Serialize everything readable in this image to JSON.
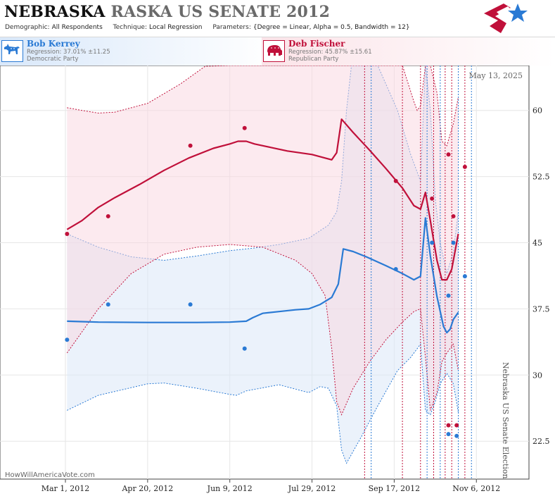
{
  "header": {
    "title_bold": "NEBRASKA",
    "title_rest": "RASKA US SENATE 2012",
    "params": [
      {
        "key": "Demographic:",
        "value": "All Respondents"
      },
      {
        "key": "Technique:",
        "value": "Local Regression"
      },
      {
        "key": "Parameters:",
        "value": "{Degree = Linear, Alpha = 0.5, Bandwidth = 12}"
      }
    ]
  },
  "candidates": {
    "dem": {
      "name": "Bob Kerrey",
      "regression": "Regression: 37.01% ±11.25",
      "party": "Democratic Party",
      "color": "#2a7ad4"
    },
    "rep": {
      "name": "Deb Fischer",
      "regression": "Regression: 45.87% ±15.61",
      "party": "Republican Party",
      "color": "#c0103a"
    }
  },
  "footer": {
    "date_label": "May 13, 2025",
    "side_label": "Nebraska US Senate Election",
    "watermark": "HowWillAmericaVote.com"
  },
  "chart_data": {
    "type": "scatter",
    "x_tick_labels": [
      "Mar 1, 2012",
      "Apr 20, 2012",
      "Jun 9, 2012",
      "Jul 29, 2012",
      "Sep 17, 2012",
      "Nov 6, 2012"
    ],
    "x_tick_days": [
      0,
      50,
      100,
      150,
      200,
      250
    ],
    "y_ticks": [
      22.5,
      30,
      37.5,
      45,
      52.5,
      60
    ],
    "y_tick_labels": [
      "22.5",
      "30",
      "37.5",
      "45",
      "52.5",
      "60"
    ],
    "ylim": [
      18.8,
      64.5
    ],
    "xlim_days": [
      -23,
      265
    ],
    "grid": true,
    "poll_lines": [
      {
        "day": 182,
        "party": "rep"
      },
      {
        "day": 186,
        "party": "dem"
      },
      {
        "day": 205,
        "party": "rep"
      },
      {
        "day": 216,
        "party": "rep"
      },
      {
        "day": 220,
        "party": "dem"
      },
      {
        "day": 224,
        "party": "rep"
      },
      {
        "day": 228,
        "party": "dem"
      },
      {
        "day": 231,
        "party": "rep"
      },
      {
        "day": 235,
        "party": "rep"
      },
      {
        "day": 239,
        "party": "dem"
      },
      {
        "day": 243,
        "party": "rep"
      },
      {
        "day": 247,
        "party": "dem"
      }
    ],
    "series": [
      {
        "name": "Bob Kerrey",
        "party": "dem",
        "color": "#2a7ad4",
        "points": [
          [
            1,
            34.0
          ],
          [
            26,
            38.0
          ],
          [
            76,
            38.0
          ],
          [
            109,
            33.0
          ],
          [
            201,
            42.0
          ],
          [
            223,
            45.0
          ],
          [
            233,
            39.0
          ],
          [
            233,
            23.3
          ],
          [
            236,
            45.0
          ],
          [
            238,
            23.1
          ],
          [
            243,
            41.2
          ]
        ],
        "trend": [
          [
            1,
            36.1
          ],
          [
            20,
            36.0
          ],
          [
            50,
            35.96
          ],
          [
            80,
            35.96
          ],
          [
            100,
            36.0
          ],
          [
            110,
            36.1
          ],
          [
            114,
            36.5
          ],
          [
            120,
            37.0
          ],
          [
            130,
            37.2
          ],
          [
            140,
            37.4
          ],
          [
            148,
            37.5
          ],
          [
            155,
            38.0
          ],
          [
            162,
            38.8
          ],
          [
            166,
            40.3
          ],
          [
            169,
            44.3
          ],
          [
            175,
            44.0
          ],
          [
            183,
            43.4
          ],
          [
            195,
            42.4
          ],
          [
            205,
            41.5
          ],
          [
            212,
            40.8
          ],
          [
            216,
            41.2
          ],
          [
            219,
            47.8
          ],
          [
            222,
            43.5
          ],
          [
            226,
            38.9
          ],
          [
            230,
            35.5
          ],
          [
            232,
            34.8
          ],
          [
            234,
            35.2
          ],
          [
            236,
            36.3
          ],
          [
            239,
            37.1
          ]
        ],
        "upper": [
          [
            1,
            46.0
          ],
          [
            20,
            44.5
          ],
          [
            40,
            43.4
          ],
          [
            60,
            43.0
          ],
          [
            80,
            43.5
          ],
          [
            100,
            44.1
          ],
          [
            115,
            44.4
          ],
          [
            130,
            44.8
          ],
          [
            148,
            45.5
          ],
          [
            160,
            47.0
          ],
          [
            165,
            48.5
          ],
          [
            168,
            52.0
          ],
          [
            171,
            60.0
          ],
          [
            174,
            68.0
          ],
          [
            180,
            70.0
          ],
          [
            190,
            66.0
          ],
          [
            202,
            60.0
          ],
          [
            210,
            55.0
          ],
          [
            216,
            52.0
          ],
          [
            219,
            70.0
          ],
          [
            222,
            60.0
          ],
          [
            225,
            50.0
          ],
          [
            228,
            45.0
          ],
          [
            232,
            41.5
          ],
          [
            236,
            44.0
          ],
          [
            239,
            48.5
          ]
        ],
        "lower": [
          [
            1,
            26.0
          ],
          [
            20,
            27.7
          ],
          [
            50,
            29.0
          ],
          [
            60,
            29.1
          ],
          [
            80,
            28.5
          ],
          [
            100,
            27.8
          ],
          [
            104,
            27.7
          ],
          [
            110,
            28.2
          ],
          [
            130,
            28.9
          ],
          [
            148,
            28.0
          ],
          [
            155,
            28.7
          ],
          [
            160,
            28.5
          ],
          [
            165,
            26.5
          ],
          [
            168,
            21.5
          ],
          [
            171,
            20.0
          ],
          [
            174,
            21.0
          ],
          [
            180,
            23.0
          ],
          [
            190,
            26.5
          ],
          [
            202,
            30.5
          ],
          [
            210,
            32.0
          ],
          [
            216,
            33.5
          ],
          [
            219,
            26.0
          ],
          [
            222,
            25.5
          ],
          [
            225,
            27.0
          ],
          [
            228,
            29.0
          ],
          [
            232,
            30.2
          ],
          [
            236,
            29.0
          ],
          [
            239,
            25.8
          ]
        ]
      },
      {
        "name": "Deb Fischer",
        "party": "rep",
        "color": "#c0103a",
        "points": [
          [
            1,
            46.0
          ],
          [
            26,
            48.0
          ],
          [
            76,
            56.0
          ],
          [
            109,
            58.0
          ],
          [
            201,
            52.0
          ],
          [
            223,
            50.0
          ],
          [
            233,
            55.0
          ],
          [
            233,
            24.3
          ],
          [
            236,
            48.0
          ],
          [
            238,
            24.3
          ],
          [
            243,
            53.6
          ]
        ],
        "trend": [
          [
            1,
            46.5
          ],
          [
            10,
            47.5
          ],
          [
            20,
            49.0
          ],
          [
            30,
            50.1
          ],
          [
            45,
            51.6
          ],
          [
            60,
            53.2
          ],
          [
            75,
            54.6
          ],
          [
            90,
            55.7
          ],
          [
            100,
            56.2
          ],
          [
            105,
            56.5
          ],
          [
            110,
            56.5
          ],
          [
            115,
            56.2
          ],
          [
            125,
            55.8
          ],
          [
            135,
            55.4
          ],
          [
            150,
            55.0
          ],
          [
            158,
            54.6
          ],
          [
            162,
            54.4
          ],
          [
            165,
            55.2
          ],
          [
            168,
            59.0
          ],
          [
            175,
            57.5
          ],
          [
            185,
            55.5
          ],
          [
            195,
            53.4
          ],
          [
            205,
            51.2
          ],
          [
            212,
            49.2
          ],
          [
            216,
            48.8
          ],
          [
            219,
            50.7
          ],
          [
            222,
            47.5
          ],
          [
            226,
            43.0
          ],
          [
            229,
            40.8
          ],
          [
            232,
            40.8
          ],
          [
            235,
            42.0
          ],
          [
            239,
            46.0
          ]
        ],
        "upper": [
          [
            1,
            60.3
          ],
          [
            10,
            60.0
          ],
          [
            20,
            59.7
          ],
          [
            30,
            59.8
          ],
          [
            50,
            60.8
          ],
          [
            70,
            63.0
          ],
          [
            85,
            65.0
          ],
          [
            100,
            67.0
          ],
          [
            120,
            70.0
          ],
          [
            140,
            72.0
          ],
          [
            160,
            74.0
          ],
          [
            175,
            75.0
          ],
          [
            195,
            74.0
          ],
          [
            205,
            72.0
          ],
          [
            212,
            61.0
          ],
          [
            214,
            60.0
          ],
          [
            216,
            60.5
          ],
          [
            219,
            66.0
          ],
          [
            222,
            68.0
          ],
          [
            226,
            62.0
          ],
          [
            229,
            56.5
          ],
          [
            232,
            56.0
          ],
          [
            236,
            58.5
          ],
          [
            239,
            61.5
          ]
        ],
        "lower": [
          [
            1,
            32.5
          ],
          [
            20,
            37.5
          ],
          [
            40,
            41.5
          ],
          [
            60,
            43.7
          ],
          [
            80,
            44.5
          ],
          [
            100,
            44.8
          ],
          [
            120,
            44.5
          ],
          [
            140,
            43.0
          ],
          [
            150,
            41.5
          ],
          [
            158,
            39.0
          ],
          [
            162,
            33.0
          ],
          [
            165,
            27.0
          ],
          [
            168,
            25.5
          ],
          [
            175,
            28.5
          ],
          [
            185,
            31.5
          ],
          [
            195,
            34.0
          ],
          [
            205,
            36.0
          ],
          [
            212,
            37.2
          ],
          [
            216,
            37.5
          ],
          [
            219,
            32.0
          ],
          [
            222,
            26.0
          ],
          [
            226,
            28.0
          ],
          [
            229,
            31.5
          ],
          [
            232,
            32.5
          ],
          [
            236,
            33.5
          ],
          [
            239,
            30.5
          ]
        ]
      }
    ]
  }
}
